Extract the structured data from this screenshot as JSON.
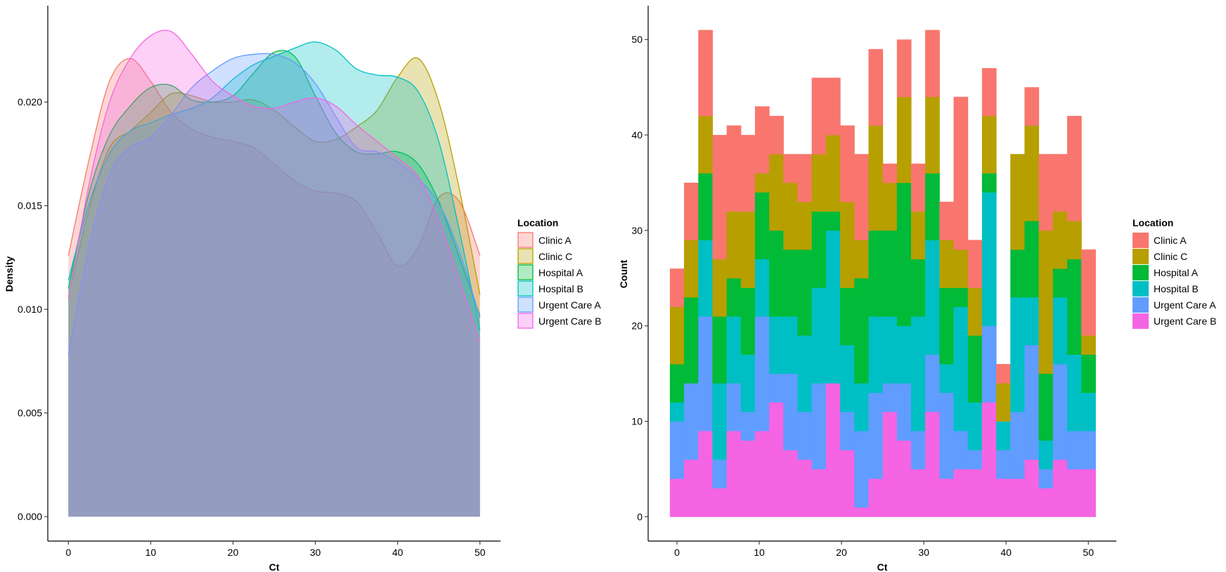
{
  "chart_data": [
    {
      "type": "area",
      "kind": "density",
      "xlabel": "Ct",
      "ylabel": "Density",
      "xlim": [
        -2.5,
        52.5
      ],
      "ylim": [
        -0.00118,
        0.02465
      ],
      "x_ticks": [
        0,
        10,
        20,
        30,
        40,
        50
      ],
      "y_ticks": [
        0.0,
        0.005,
        0.01,
        0.015,
        0.02
      ],
      "y_tick_labels": [
        "0.000",
        "0.005",
        "0.010",
        "0.015",
        "0.020"
      ],
      "legend_title": "Location",
      "legend_position": "right",
      "x": [
        0,
        2.5,
        5,
        7.5,
        10,
        12.5,
        15,
        17.5,
        20,
        22.5,
        25,
        27.5,
        30,
        32.5,
        35,
        37.5,
        40,
        42.5,
        45,
        47.5,
        50
      ],
      "series": [
        {
          "name": "Clinic A",
          "color": "#F8766D",
          "values": [
            0.0126,
            0.0172,
            0.021,
            0.0221,
            0.021,
            0.0195,
            0.0187,
            0.0183,
            0.0181,
            0.0178,
            0.017,
            0.0162,
            0.0157,
            0.0156,
            0.0152,
            0.0137,
            0.0121,
            0.013,
            0.0154,
            0.0152,
            0.0126
          ]
        },
        {
          "name": "Clinic C",
          "color": "#B79F00",
          "values": [
            0.0106,
            0.0148,
            0.0178,
            0.0186,
            0.0195,
            0.0204,
            0.0203,
            0.02,
            0.02,
            0.0201,
            0.0196,
            0.0188,
            0.0181,
            0.0182,
            0.0188,
            0.0196,
            0.0212,
            0.0221,
            0.02,
            0.0158,
            0.0107
          ]
        },
        {
          "name": "Hospital A",
          "color": "#00BA38",
          "values": [
            0.011,
            0.0156,
            0.0184,
            0.0198,
            0.0207,
            0.0208,
            0.0201,
            0.02,
            0.0203,
            0.0214,
            0.0224,
            0.0222,
            0.0203,
            0.0185,
            0.0176,
            0.0175,
            0.0176,
            0.017,
            0.0152,
            0.0125,
            0.0097
          ]
        },
        {
          "name": "Hospital B",
          "color": "#00BFC4",
          "values": [
            0.0114,
            0.0151,
            0.0175,
            0.0186,
            0.019,
            0.0194,
            0.0197,
            0.0202,
            0.0211,
            0.0218,
            0.0222,
            0.0226,
            0.0229,
            0.0225,
            0.0216,
            0.0213,
            0.0212,
            0.0205,
            0.0181,
            0.0138,
            0.009
          ]
        },
        {
          "name": "Urgent Care A",
          "color": "#619CFF",
          "values": [
            0.0078,
            0.013,
            0.0165,
            0.0178,
            0.0183,
            0.0194,
            0.0207,
            0.0215,
            0.0221,
            0.0223,
            0.0223,
            0.0219,
            0.0209,
            0.0193,
            0.0178,
            0.0176,
            0.0171,
            0.0163,
            0.0151,
            0.0128,
            0.0096
          ]
        },
        {
          "name": "Urgent Care B",
          "color": "#F564E3",
          "values": [
            0.0105,
            0.016,
            0.02,
            0.0221,
            0.0232,
            0.0234,
            0.0223,
            0.021,
            0.0203,
            0.0198,
            0.0197,
            0.02,
            0.0202,
            0.0198,
            0.0189,
            0.0181,
            0.0173,
            0.0164,
            0.0143,
            0.0114,
            0.0084
          ]
        }
      ]
    },
    {
      "type": "bar",
      "kind": "stacked histogram",
      "xlabel": "Ct",
      "ylabel": "Count",
      "xlim": [
        -3.5,
        53.4
      ],
      "ylim": [
        -2.55,
        53.55
      ],
      "x_ticks": [
        0,
        10,
        20,
        30,
        40,
        50
      ],
      "y_ticks": [
        0,
        10,
        20,
        30,
        40,
        50
      ],
      "bin_width": 1.72,
      "legend_title": "Location",
      "legend_position": "right",
      "categories": [
        0,
        1.72,
        3.45,
        5.17,
        6.9,
        8.62,
        10.34,
        12.07,
        13.79,
        15.52,
        17.24,
        18.97,
        20.69,
        22.41,
        24.14,
        25.86,
        27.59,
        29.31,
        31.03,
        32.76,
        34.48,
        36.21,
        37.93,
        39.66,
        41.38,
        43.1,
        44.83,
        46.55,
        48.28,
        50
      ],
      "series": [
        {
          "name": "Urgent Care B",
          "color": "#F564E3",
          "values": [
            4,
            6,
            9,
            3,
            9,
            8,
            9,
            12,
            7,
            6,
            5,
            14,
            7,
            1,
            4,
            11,
            8,
            5,
            11,
            4,
            5,
            5,
            12,
            4,
            4,
            6,
            3,
            6,
            5,
            5
          ]
        },
        {
          "name": "Urgent Care A",
          "color": "#619CFF",
          "values": [
            6,
            8,
            12,
            3,
            5,
            3,
            12,
            3,
            8,
            5,
            9,
            0,
            4,
            8,
            9,
            3,
            6,
            4,
            6,
            9,
            4,
            2,
            8,
            3,
            7,
            12,
            2,
            10,
            4,
            4
          ]
        },
        {
          "name": "Hospital B",
          "color": "#00BFC4",
          "values": [
            2,
            0,
            8,
            8,
            7,
            6,
            6,
            6,
            6,
            8,
            10,
            16,
            7,
            5,
            8,
            7,
            6,
            12,
            12,
            3,
            13,
            5,
            14,
            3,
            12,
            5,
            3,
            7,
            8,
            4
          ]
        },
        {
          "name": "Hospital A",
          "color": "#00BA38",
          "values": [
            4,
            9,
            7,
            7,
            4,
            7,
            7,
            9,
            7,
            9,
            8,
            2,
            6,
            11,
            9,
            9,
            15,
            6,
            7,
            8,
            2,
            7,
            2,
            0,
            5,
            8,
            7,
            3,
            10,
            4
          ]
        },
        {
          "name": "Clinic C",
          "color": "#B79F00",
          "values": [
            6,
            6,
            6,
            6,
            7,
            8,
            2,
            8,
            7,
            5,
            6,
            8,
            9,
            4,
            11,
            5,
            9,
            5,
            8,
            5,
            4,
            5,
            6,
            4,
            10,
            10,
            15,
            6,
            4,
            2
          ]
        },
        {
          "name": "Clinic A",
          "color": "#F8766D",
          "values": [
            4,
            6,
            9,
            13,
            9,
            8,
            7,
            4,
            3,
            5,
            8,
            6,
            8,
            9,
            8,
            2,
            6,
            5,
            7,
            4,
            16,
            5,
            5,
            2,
            0,
            4,
            8,
            6,
            11,
            9
          ]
        }
      ]
    }
  ]
}
